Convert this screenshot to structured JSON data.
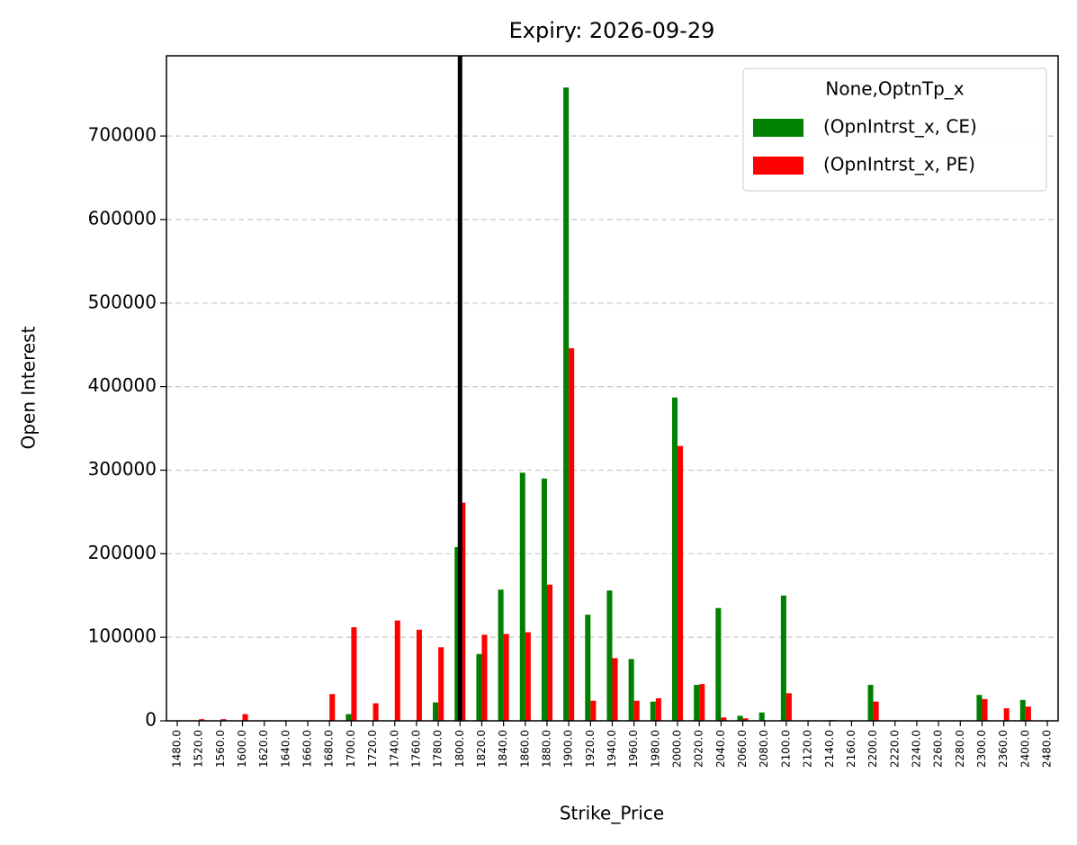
{
  "chart_data": {
    "type": "bar",
    "title": "Expiry: 2026-09-29",
    "x_label": "Strike_Price",
    "y_label": "Open Interest",
    "categories": [
      "1480.0",
      "1520.0",
      "1560.0",
      "1600.0",
      "1620.0",
      "1640.0",
      "1660.0",
      "1680.0",
      "1700.0",
      "1720.0",
      "1740.0",
      "1760.0",
      "1780.0",
      "1800.0",
      "1820.0",
      "1840.0",
      "1860.0",
      "1880.0",
      "1900.0",
      "1920.0",
      "1940.0",
      "1960.0",
      "1980.0",
      "2000.0",
      "2020.0",
      "2040.0",
      "2060.0",
      "2080.0",
      "2100.0",
      "2120.0",
      "2140.0",
      "2160.0",
      "2200.0",
      "2220.0",
      "2240.0",
      "2260.0",
      "2280.0",
      "2300.0",
      "2360.0",
      "2400.0",
      "2480.0"
    ],
    "series": [
      {
        "name": "(OpnIntrst_x, CE)",
        "color": "#008000",
        "values": [
          0,
          0,
          0,
          0,
          0,
          0,
          0,
          0,
          8000,
          0,
          0,
          0,
          22000,
          208000,
          80000,
          157000,
          297000,
          290000,
          758000,
          127000,
          156000,
          74000,
          23000,
          387000,
          43000,
          135000,
          6000,
          10000,
          150000,
          0,
          0,
          0,
          43000,
          0,
          0,
          0,
          0,
          31000,
          0,
          25000,
          0
        ]
      },
      {
        "name": "(OpnIntrst_x, PE)",
        "color": "#ff0000",
        "values": [
          0,
          2000,
          2000,
          8000,
          0,
          0,
          0,
          32000,
          112000,
          21000,
          120000,
          109000,
          88000,
          261000,
          103000,
          104000,
          106000,
          163000,
          446000,
          24000,
          75000,
          24000,
          27000,
          329000,
          44000,
          4000,
          3000,
          0,
          33000,
          0,
          1000,
          0,
          23000,
          0,
          0,
          0,
          0,
          26000,
          15000,
          17000,
          0
        ]
      }
    ],
    "legend_title": "None,OptnTp_x",
    "legend_position": "upper right",
    "ylim": [
      0,
      796000
    ],
    "yticks": [
      0,
      100000,
      200000,
      300000,
      400000,
      500000,
      600000,
      700000
    ],
    "grid": true,
    "vline": "1800.0"
  }
}
